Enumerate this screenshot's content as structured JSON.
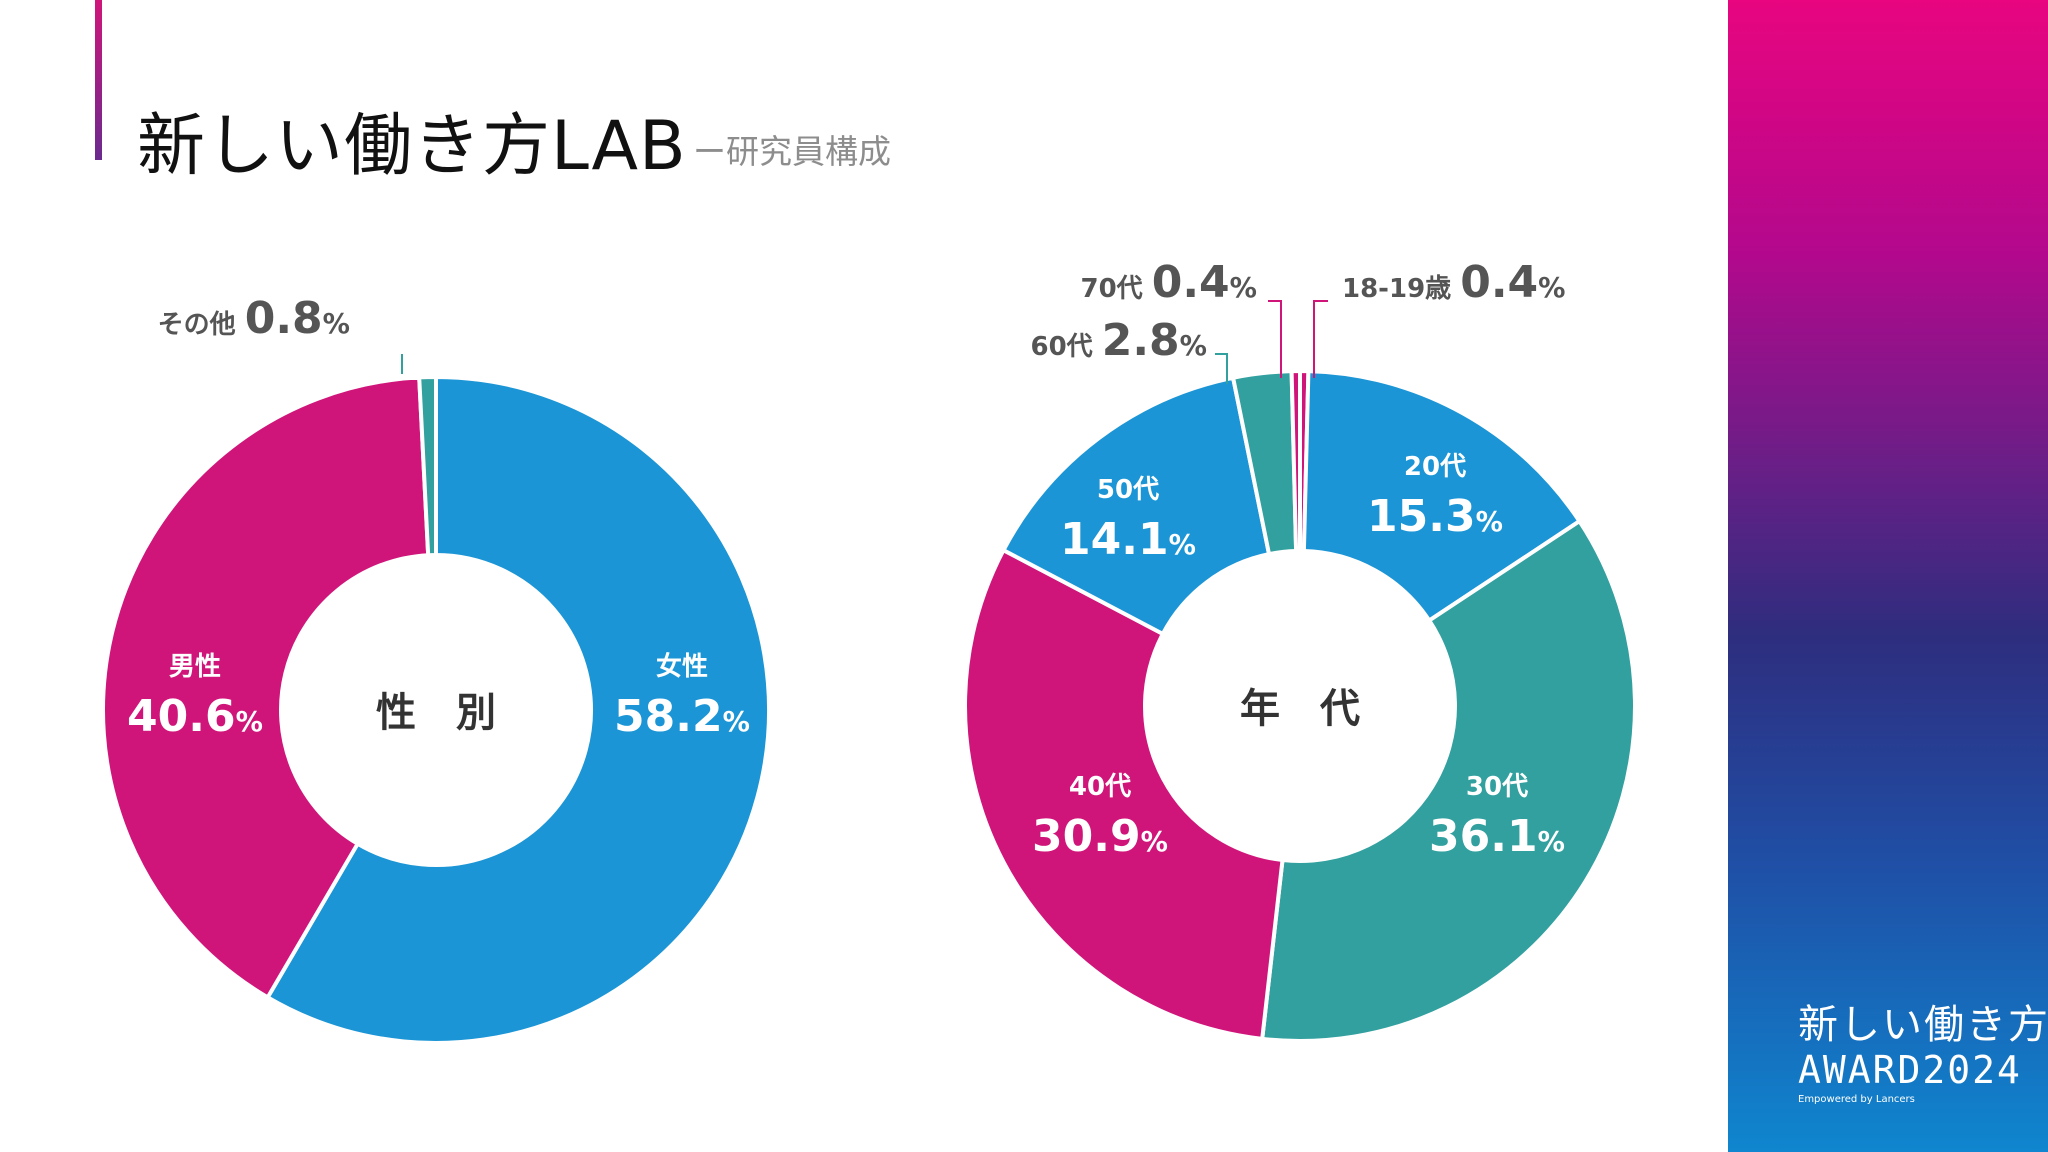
{
  "header": {
    "title": "新しい働き方LAB",
    "subtitle": "ー研究員構成"
  },
  "brand": {
    "line1": "新しい働き方",
    "line2": "AWARD2024",
    "line3": "Empowered by Lancers"
  },
  "colors": {
    "blue": "#1b95d5",
    "magenta": "#d0157a",
    "teal": "#31a09f"
  },
  "chart_data": [
    {
      "type": "pie",
      "center_label": "性　別",
      "slices": [
        {
          "label": "女性",
          "value": 58.2,
          "value_text": "58.2",
          "color": "#1b95d5"
        },
        {
          "label": "男性",
          "value": 40.6,
          "value_text": "40.6",
          "color": "#d0157a"
        },
        {
          "label": "その他",
          "value": 0.8,
          "value_text": "0.8",
          "color": "#31a09f"
        }
      ]
    },
    {
      "type": "pie",
      "center_label": "年　代",
      "slices": [
        {
          "label": "18-19歳",
          "value": 0.4,
          "value_text": "0.4",
          "color": "#d0157a"
        },
        {
          "label": "20代",
          "value": 15.3,
          "value_text": "15.3",
          "color": "#1b95d5"
        },
        {
          "label": "30代",
          "value": 36.1,
          "value_text": "36.1",
          "color": "#31a09f"
        },
        {
          "label": "40代",
          "value": 30.9,
          "value_text": "30.9",
          "color": "#d0157a"
        },
        {
          "label": "50代",
          "value": 14.1,
          "value_text": "14.1",
          "color": "#1b95d5"
        },
        {
          "label": "60代",
          "value": 2.8,
          "value_text": "2.8",
          "color": "#31a09f"
        },
        {
          "label": "70代",
          "value": 0.4,
          "value_text": "0.4",
          "color": "#d0157a"
        }
      ]
    }
  ]
}
